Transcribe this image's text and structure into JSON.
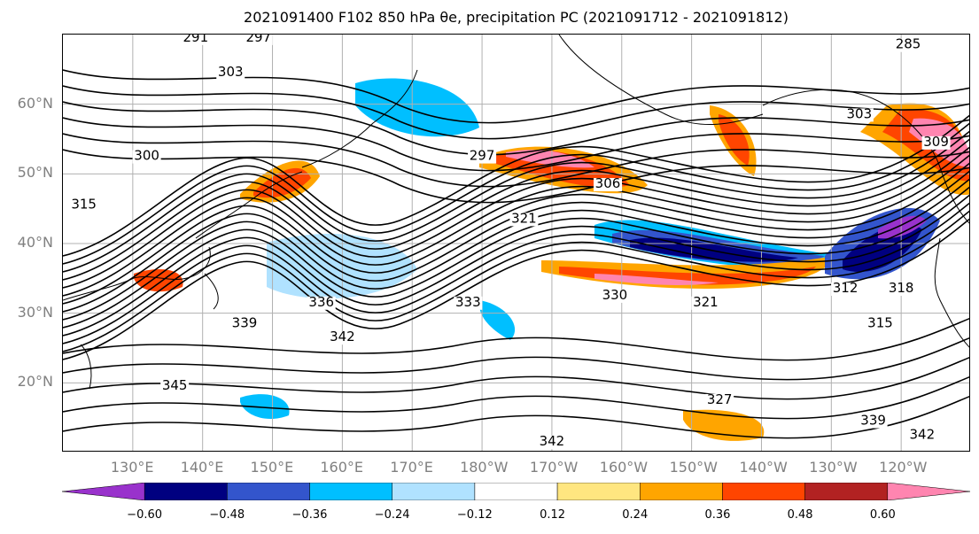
{
  "title": "2021091400 F102 850 hPa θe, precipitation PC (2021091712 - 2021091812)",
  "lat_labels": [
    {
      "text": "60°N",
      "lat": 60
    },
    {
      "text": "50°N",
      "lat": 50
    },
    {
      "text": "40°N",
      "lat": 40
    },
    {
      "text": "30°N",
      "lat": 30
    },
    {
      "text": "20°N",
      "lat": 20
    }
  ],
  "lon_labels": [
    {
      "text": "130°E",
      "lon": 130
    },
    {
      "text": "140°E",
      "lon": 140
    },
    {
      "text": "150°E",
      "lon": 150
    },
    {
      "text": "160°E",
      "lon": 160
    },
    {
      "text": "170°E",
      "lon": 170
    },
    {
      "text": "180°W",
      "lon": 180
    },
    {
      "text": "170°W",
      "lon": 190
    },
    {
      "text": "160°W",
      "lon": 200
    },
    {
      "text": "150°W",
      "lon": 210
    },
    {
      "text": "140°W",
      "lon": 220
    },
    {
      "text": "130°W",
      "lon": 230
    },
    {
      "text": "120°W",
      "lon": 240
    }
  ],
  "colorbar": {
    "colors": [
      "#9932cc",
      "#000080",
      "#3355cc",
      "#00bfff",
      "#b0e2ff",
      "#ffffff",
      "#ffe680",
      "#ffa500",
      "#ff4500",
      "#b22222",
      "#ff85b0"
    ],
    "ticks": [
      "−0.60",
      "−0.48",
      "−0.36",
      "−0.24",
      "−0.12",
      "0.12",
      "0.24",
      "0.36",
      "0.48",
      "0.60"
    ]
  },
  "contour_labels": [
    {
      "text": "291",
      "lon": 139,
      "lat": 69
    },
    {
      "text": "297",
      "lon": 148,
      "lat": 69
    },
    {
      "text": "303",
      "lon": 144,
      "lat": 64
    },
    {
      "text": "300",
      "lon": 132,
      "lat": 52
    },
    {
      "text": "297",
      "lon": 180,
      "lat": 52
    },
    {
      "text": "306",
      "lon": 198,
      "lat": 48
    },
    {
      "text": "321",
      "lon": 186,
      "lat": 43
    },
    {
      "text": "336",
      "lon": 157,
      "lat": 31
    },
    {
      "text": "333",
      "lon": 178,
      "lat": 31
    },
    {
      "text": "330",
      "lon": 199,
      "lat": 32
    },
    {
      "text": "321",
      "lon": 212,
      "lat": 31
    },
    {
      "text": "339",
      "lon": 146,
      "lat": 28
    },
    {
      "text": "342",
      "lon": 160,
      "lat": 26
    },
    {
      "text": "345",
      "lon": 136,
      "lat": 19
    },
    {
      "text": "342",
      "lon": 190,
      "lat": 11
    },
    {
      "text": "327",
      "lon": 214,
      "lat": 17
    },
    {
      "text": "339",
      "lon": 236,
      "lat": 14
    },
    {
      "text": "342",
      "lon": 243,
      "lat": 12
    },
    {
      "text": "312",
      "lon": 232,
      "lat": 33
    },
    {
      "text": "315",
      "lon": 237,
      "lat": 28
    },
    {
      "text": "318",
      "lon": 240,
      "lat": 33
    },
    {
      "text": "303",
      "lon": 234,
      "lat": 58
    },
    {
      "text": "309",
      "lon": 245,
      "lat": 54
    },
    {
      "text": "315",
      "lon": 123,
      "lat": 45
    },
    {
      "text": "285",
      "lon": 241,
      "lat": 68
    }
  ]
}
